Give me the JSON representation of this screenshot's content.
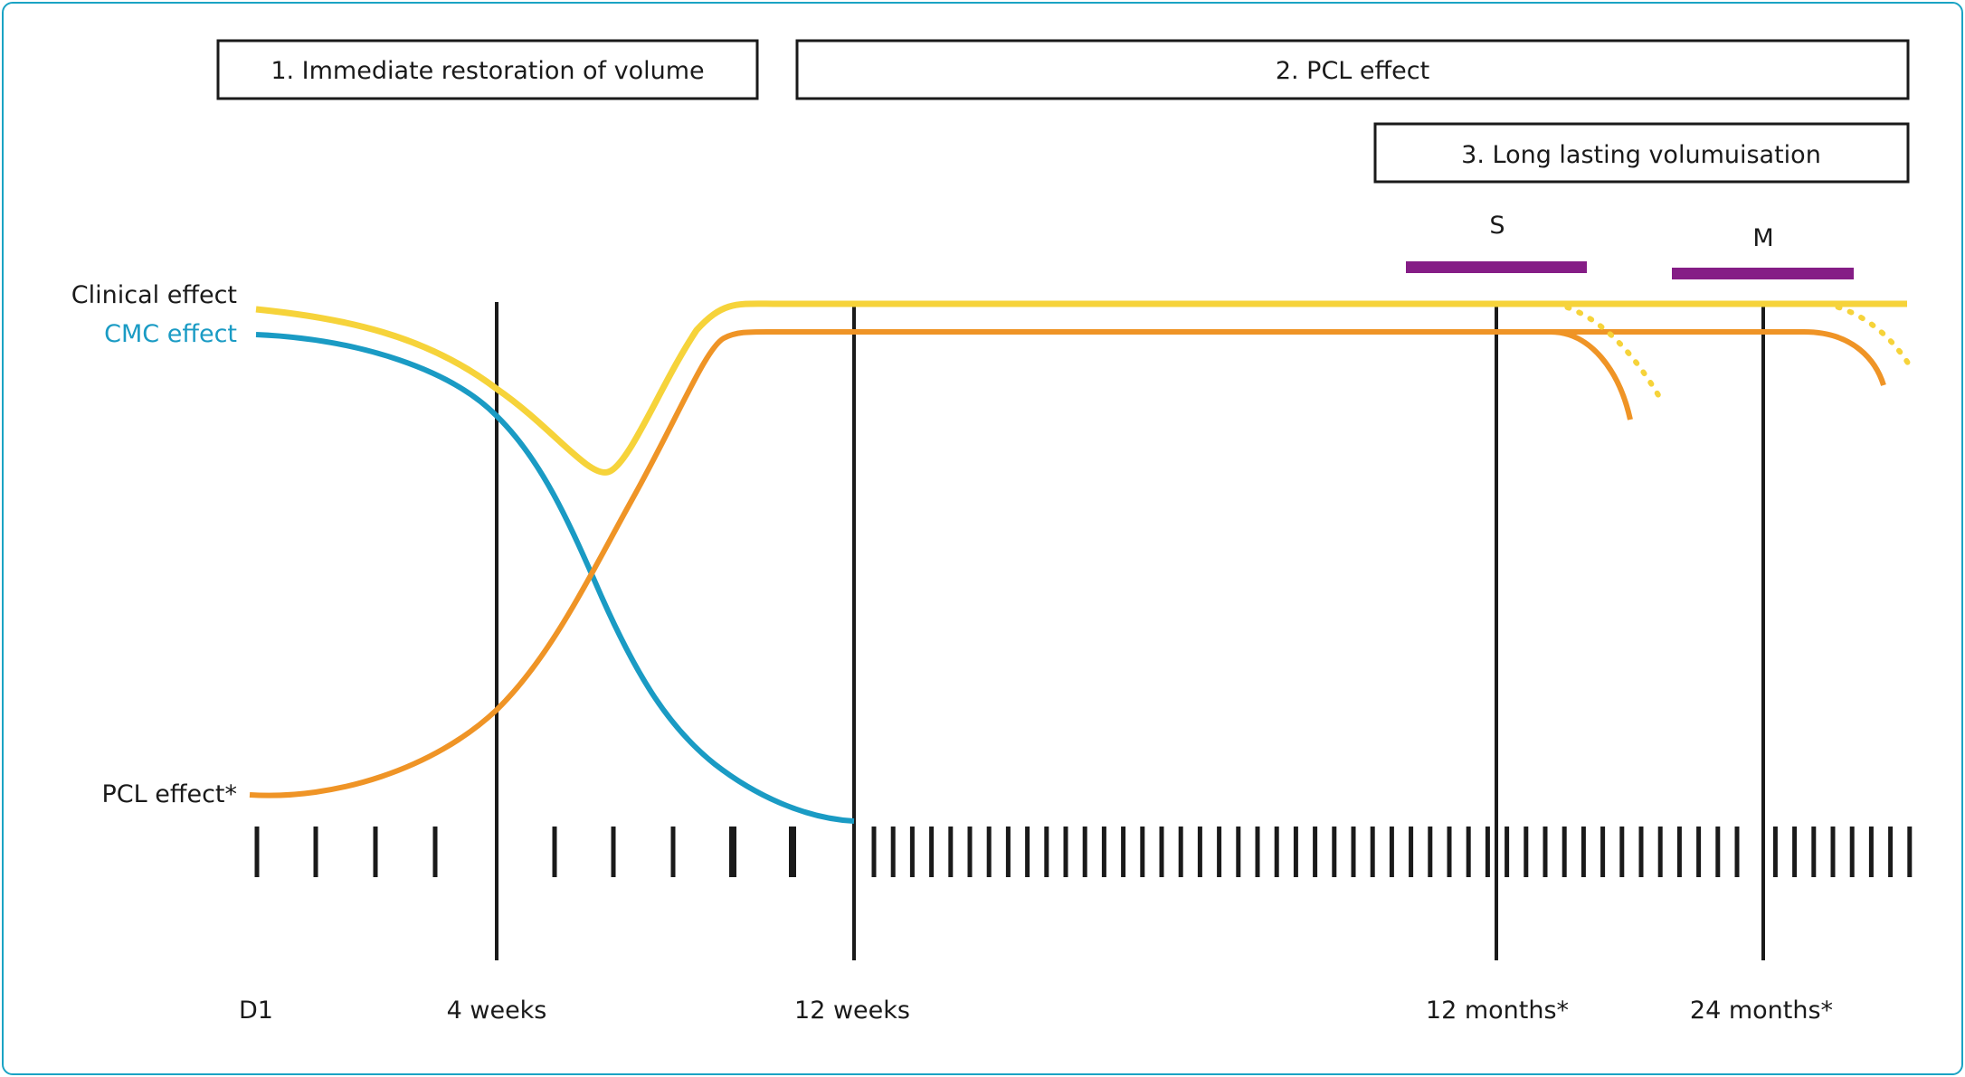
{
  "phases": {
    "phase1": "1. Immediate restoration of volume",
    "phase2": "2. PCL effect",
    "phase3": "3. Long lasting volumuisation"
  },
  "markers": {
    "s": "S",
    "m": "M"
  },
  "curve_labels": {
    "clinical": "Clinical effect",
    "cmc": "CMC effect",
    "pcl": "PCL effect*"
  },
  "time_labels": {
    "d1": "D1",
    "w4": "4 weeks",
    "w12": "12 weeks",
    "m12": "12 months*",
    "m24": "24 months*"
  },
  "colors": {
    "frame": "#1aa3c4",
    "clinical": "#f6d33a",
    "cmc": "#1a9bc4",
    "pcl": "#ef9426",
    "marker": "#851d86",
    "line": "#1a1a1a"
  }
}
